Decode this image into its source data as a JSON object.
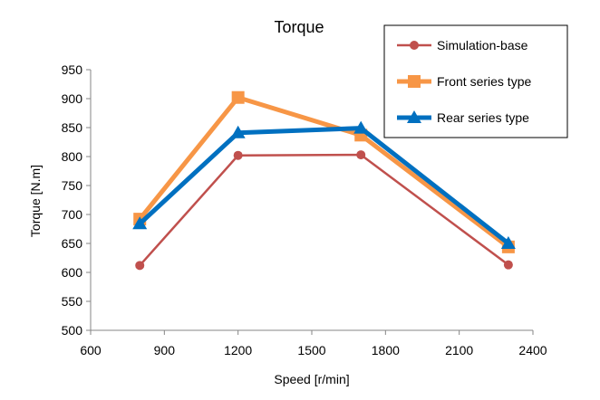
{
  "chart_data": {
    "type": "line",
    "title": "Torque",
    "xlabel": "Speed [r/min]",
    "ylabel": "Torque [N.m]",
    "xlim": [
      600,
      2400
    ],
    "ylim": [
      500,
      950
    ],
    "xticks": [
      600,
      900,
      1200,
      1500,
      1800,
      2100,
      2400
    ],
    "yticks": [
      500,
      550,
      600,
      650,
      700,
      750,
      800,
      850,
      900,
      950
    ],
    "grid": false,
    "legend_position": "top-right",
    "series": [
      {
        "name": "Simulation-base",
        "color": "#c0504d",
        "marker": "circle",
        "x": [
          800,
          1200,
          1700,
          2300
        ],
        "y": [
          612,
          802,
          803,
          613
        ]
      },
      {
        "name": "Front series type",
        "color": "#f79646",
        "marker": "square",
        "x": [
          800,
          1200,
          1700,
          2300
        ],
        "y": [
          692,
          902,
          837,
          644
        ]
      },
      {
        "name": "Rear series type",
        "color": "#0070c0",
        "marker": "triangle",
        "x": [
          800,
          1200,
          1700,
          2300
        ],
        "y": [
          684,
          841,
          849,
          650
        ]
      }
    ]
  }
}
